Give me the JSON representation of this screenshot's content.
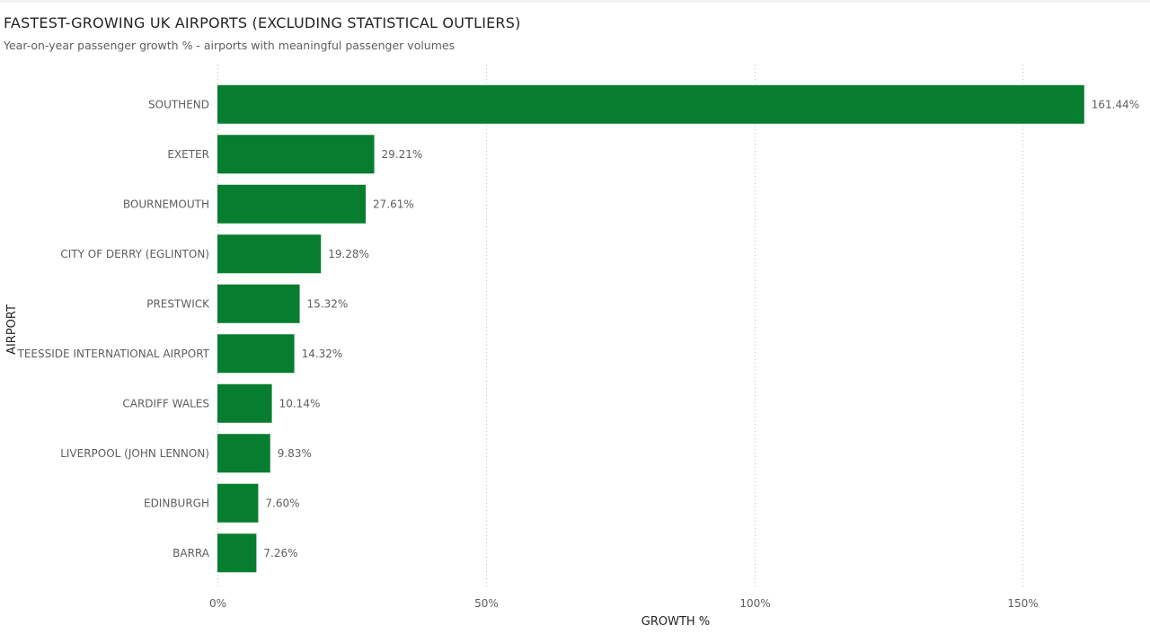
{
  "header": {
    "title": "FASTEST-GROWING UK AIRPORTS (EXCLUDING STATISTICAL OUTLIERS)",
    "subtitle": "Year-on-year passenger growth % - airports with meaningful passenger volumes"
  },
  "chart_data": {
    "type": "bar",
    "orientation": "horizontal",
    "title": "FASTEST-GROWING UK AIRPORTS (EXCLUDING STATISTICAL OUTLIERS)",
    "subtitle": "Year-on-year passenger growth % - airports with meaningful passenger volumes",
    "categories": [
      "SOUTHEND",
      "EXETER",
      "BOURNEMOUTH",
      "CITY OF DERRY (EGLINTON)",
      "PRESTWICK",
      "TEESSIDE INTERNATIONAL AIRPORT",
      "CARDIFF WALES",
      "LIVERPOOL (JOHN LENNON)",
      "EDINBURGH",
      "BARRA"
    ],
    "values": [
      161.44,
      29.21,
      27.61,
      19.28,
      15.32,
      14.32,
      10.14,
      9.83,
      7.6,
      7.26
    ],
    "value_labels": [
      "161.44%",
      "29.21%",
      "27.61%",
      "19.28%",
      "15.32%",
      "14.32%",
      "10.14%",
      "9.83%",
      "7.60%",
      "7.26%"
    ],
    "xlabel": "GROWTH %",
    "ylabel": "AIRPORT",
    "xlim": [
      0,
      167
    ],
    "xticks": [
      0,
      50,
      100,
      150
    ],
    "xtick_labels": [
      "0%",
      "50%",
      "100%",
      "150%"
    ],
    "grid": true,
    "legend": "none",
    "bar_color": "#077D2F"
  }
}
